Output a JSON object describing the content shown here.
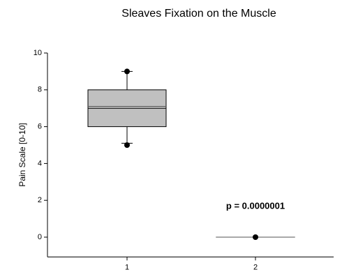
{
  "chart_data": {
    "type": "box",
    "title": "Sleaves Fixation on the Muscle",
    "y_label": "Pain Scale [0-10]",
    "categories": [
      "1",
      "2"
    ],
    "boxes": [
      {
        "whislo": 5.1,
        "q1": 6,
        "med": 7,
        "mean": 7.1,
        "q3": 8,
        "whishi": 9,
        "fliers": [
          9,
          5
        ]
      },
      {
        "whislo": 0,
        "q1": 0,
        "med": 0,
        "mean": 0,
        "q3": 0,
        "whishi": 0,
        "fliers": [
          0
        ]
      }
    ],
    "color": "#c0c0c0",
    "ylim": [
      -1,
      10
    ],
    "yticks": [
      0,
      2,
      4,
      6,
      8,
      10
    ],
    "annotation": "p = 0.0000001"
  }
}
